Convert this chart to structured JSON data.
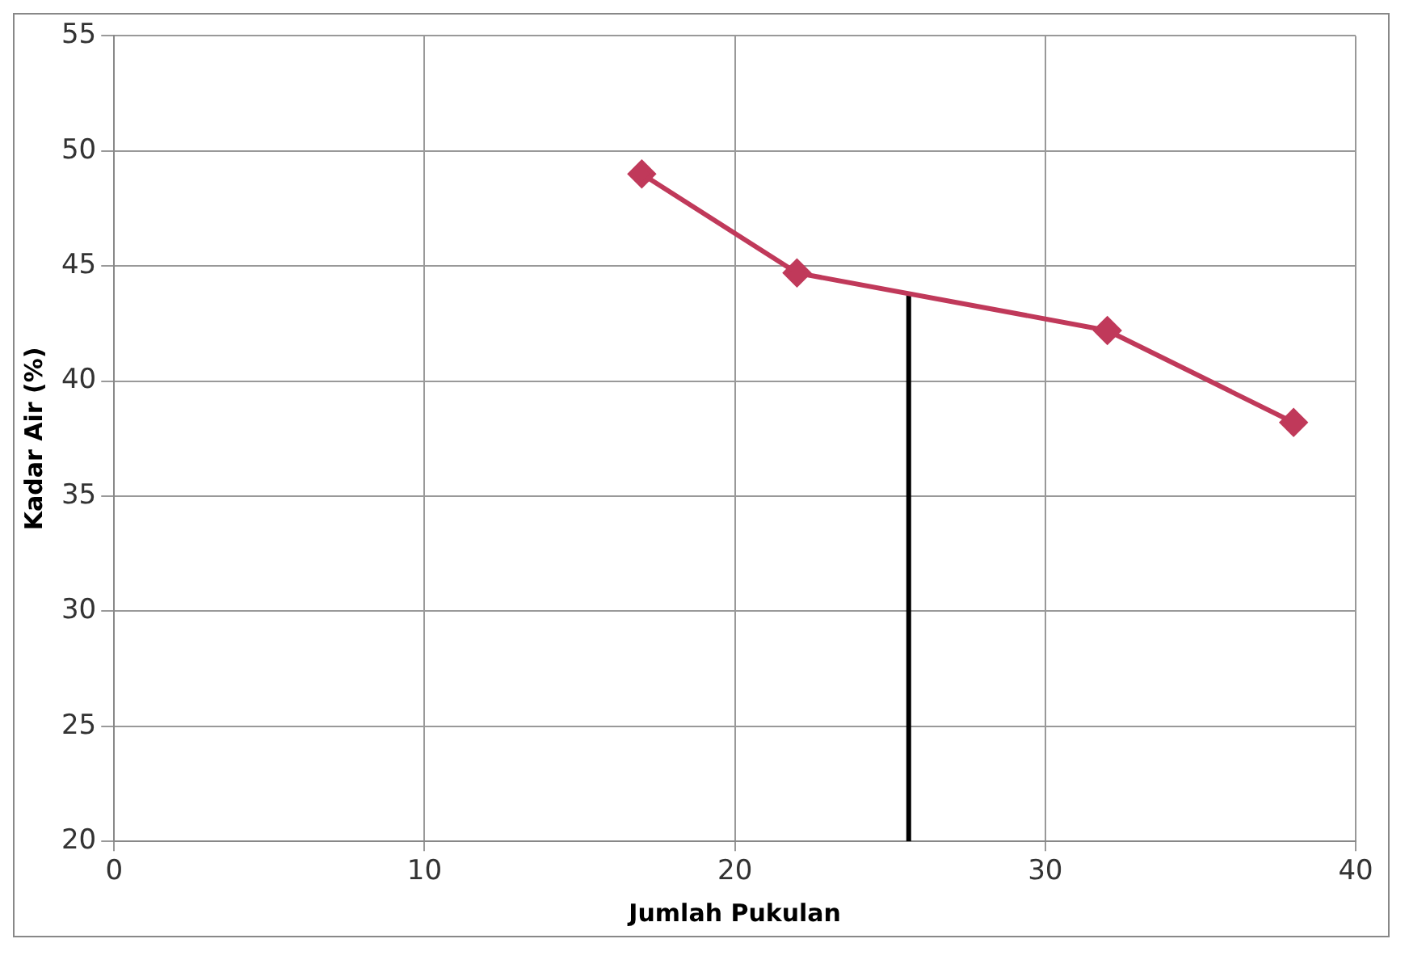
{
  "chart_data": {
    "type": "line",
    "xlabel": "Jumlah Pukulan",
    "ylabel": "Kadar Air (%)",
    "xlim": [
      0,
      40
    ],
    "xticks": [
      0,
      10,
      20,
      30,
      40
    ],
    "ylim": [
      20,
      55
    ],
    "yticks": [
      20,
      25,
      30,
      35,
      40,
      45,
      50,
      55
    ],
    "grid": true,
    "marker": "diamond",
    "series": [
      {
        "color": "#c0395a",
        "x": [
          17,
          22,
          32,
          38
        ],
        "values": [
          49,
          44.7,
          42.2,
          38.2
        ]
      },
      {
        "color": "#000000",
        "x": [
          25.6,
          25.6
        ],
        "values": [
          20,
          43.8
        ],
        "marker": "none"
      }
    ]
  }
}
